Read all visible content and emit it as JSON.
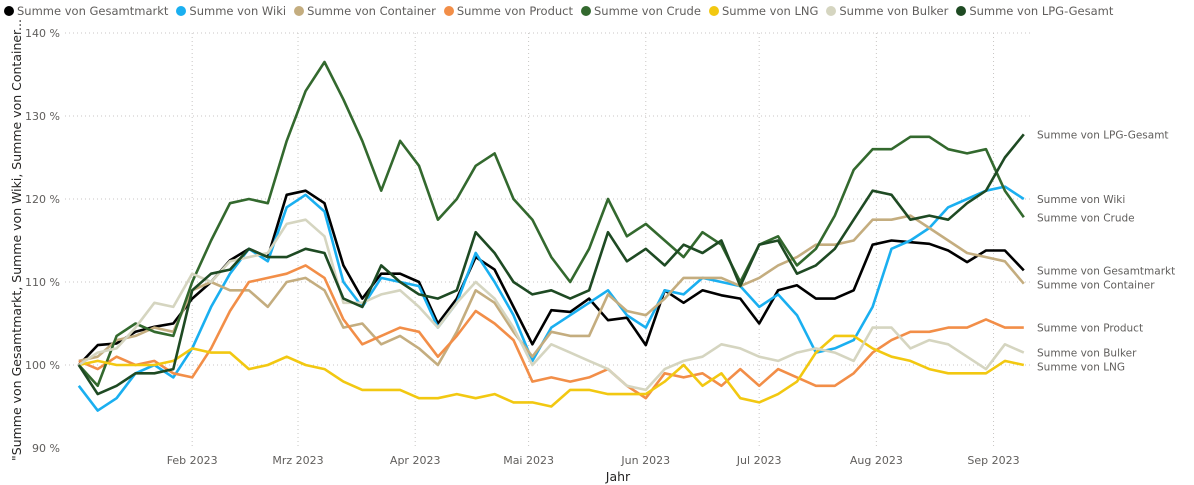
{
  "chart_data": {
    "type": "line",
    "title": "",
    "xlabel": "Jahr",
    "ylabel": "\"Summe von Gesamtmarkt, Summe von Wiki, Summe von Container...",
    "ylim": [
      90,
      140
    ],
    "y_ticks": [
      {
        "value": 90,
        "label": "90 %"
      },
      {
        "value": 100,
        "label": "100 %"
      },
      {
        "value": 110,
        "label": "110 %"
      },
      {
        "value": 120,
        "label": "120 %"
      },
      {
        "value": 130,
        "label": "130 %"
      },
      {
        "value": 140,
        "label": "140 %"
      }
    ],
    "x_ticks": [
      {
        "date": "2023-02-01",
        "label": "Feb 2023"
      },
      {
        "date": "2023-03-01",
        "label": "Mrz 2023"
      },
      {
        "date": "2023-04-01",
        "label": "Apr 2023"
      },
      {
        "date": "2023-05-01",
        "label": "Mai 2023"
      },
      {
        "date": "2023-06-01",
        "label": "Jun 2023"
      },
      {
        "date": "2023-07-01",
        "label": "Jul 2023"
      },
      {
        "date": "2023-08-01",
        "label": "Aug 2023"
      },
      {
        "date": "2023-09-01",
        "label": "Sep 2023"
      }
    ],
    "x_range": [
      "2023-01-01",
      "2023-09-10"
    ],
    "x_start": "2023-01-02",
    "x_step_days": 5,
    "grid": true,
    "legend_position": "top-left",
    "series": [
      {
        "name": "Summe von Gesamtmarkt",
        "color": "#000000",
        "values": [
          100,
          102.4,
          102.6,
          104,
          104.6,
          105,
          108,
          110,
          112.6,
          114,
          113,
          120.5,
          121,
          119.5,
          112,
          108,
          111,
          111,
          110,
          105,
          108,
          113,
          111.5,
          107,
          102.5,
          106.6,
          106.4,
          108,
          105.4,
          105.7,
          102.4,
          109,
          107.5,
          109,
          108.4,
          108,
          105,
          109,
          109.6,
          108,
          108,
          109,
          114.5,
          115,
          114.8,
          114.6,
          113.8,
          112.4,
          113.8,
          113.8,
          111.4
        ]
      },
      {
        "name": "Summe von Wiki",
        "color": "#1AAFF0",
        "values": [
          97.5,
          94.5,
          96,
          99,
          100,
          98.5,
          102,
          107,
          111,
          114,
          112.5,
          119,
          120.5,
          118.5,
          110,
          107,
          110.5,
          110,
          109.5,
          104.5,
          107.5,
          113.5,
          110,
          106,
          100.5,
          104.5,
          106,
          107.5,
          109,
          106,
          104.5,
          109,
          108.5,
          110.5,
          110,
          109.5,
          107,
          108.5,
          106,
          101.5,
          102,
          103,
          107,
          114,
          115,
          116.5,
          119,
          120,
          121,
          121.5,
          120
        ]
      },
      {
        "name": "Summe von Container",
        "color": "#C4AD7F",
        "values": [
          100.5,
          101,
          103,
          103.5,
          104.5,
          104,
          109,
          110,
          109,
          109,
          107,
          110,
          110.5,
          109,
          104.5,
          105,
          102.5,
          103.5,
          102,
          100,
          104,
          109,
          107.5,
          104,
          101,
          104,
          103.5,
          103.5,
          108.5,
          106.5,
          106,
          108,
          110.5,
          110.5,
          110.5,
          109.5,
          110.5,
          112,
          113,
          114.5,
          114.5,
          115,
          117.5,
          117.5,
          118,
          116.5,
          115,
          113.5,
          113,
          112.5,
          109.8
        ]
      },
      {
        "name": "Summe von Product",
        "color": "#F28E48",
        "values": [
          100.5,
          99.5,
          101,
          100,
          100.5,
          99,
          98.5,
          102,
          106.5,
          110,
          110.5,
          111,
          112,
          110.5,
          105.5,
          102.5,
          103.5,
          104.5,
          104,
          101,
          103.5,
          106.5,
          105,
          103,
          98,
          98.5,
          98,
          98.5,
          99.5,
          97.5,
          96,
          99,
          98.5,
          99,
          97.5,
          99.5,
          97.5,
          99.5,
          98.5,
          97.5,
          97.5,
          99,
          101.5,
          103,
          104,
          104,
          104.5,
          104.5,
          105.5,
          104.5,
          104.5
        ]
      },
      {
        "name": "Summe von Crude",
        "color": "#33692E",
        "values": [
          100,
          97.5,
          103.5,
          105,
          104,
          103.5,
          110,
          115,
          119.5,
          120,
          119.5,
          127,
          133,
          136.5,
          132,
          127,
          121,
          127,
          124,
          117.5,
          120,
          124,
          125.5,
          120,
          117.5,
          113,
          110,
          114,
          120,
          115.5,
          117,
          115,
          113,
          116,
          114.5,
          110,
          114.5,
          115.5,
          112,
          114,
          118,
          123.5,
          126,
          126,
          127.5,
          127.5,
          126,
          125.5,
          126,
          121,
          117.8
        ]
      },
      {
        "name": "Summe von LNG",
        "color": "#F2C811",
        "values": [
          100,
          100.5,
          100,
          100,
          100,
          100.5,
          102,
          101.5,
          101.5,
          99.5,
          100,
          101,
          100,
          99.5,
          98,
          97,
          97,
          97,
          96,
          96,
          96.5,
          96,
          96.5,
          95.5,
          95.5,
          95,
          97,
          97,
          96.5,
          96.5,
          96.5,
          98,
          100,
          97.5,
          99,
          96,
          95.5,
          96.5,
          98,
          101.5,
          103.5,
          103.5,
          102,
          101,
          100.5,
          99.5,
          99,
          99,
          99,
          100.5,
          100
        ]
      },
      {
        "name": "Summe von Bulker",
        "color": "#D5D5C0",
        "values": [
          100,
          101.5,
          102,
          104.5,
          107.5,
          107,
          111,
          110,
          112.5,
          113,
          113.5,
          117,
          117.5,
          115.5,
          107.5,
          107.5,
          108.5,
          109,
          107,
          104.5,
          107.5,
          110,
          108,
          104.5,
          100,
          102.5,
          101.5,
          100.5,
          99.5,
          97.5,
          97,
          99.5,
          100.5,
          101,
          102.5,
          102,
          101,
          100.5,
          101.5,
          102,
          101.5,
          100.5,
          104.5,
          104.5,
          102,
          103,
          102.5,
          101,
          99.5,
          102.5,
          101.5
        ]
      },
      {
        "name": "Summe von LPG-Gesamt",
        "color": "#1E4A23",
        "values": [
          100,
          96.5,
          97.5,
          99,
          99,
          99.5,
          109,
          111,
          111.5,
          114,
          113,
          113,
          114,
          113.5,
          108,
          107,
          112,
          110,
          108.5,
          108,
          109,
          116,
          113.5,
          110,
          108.5,
          109,
          108,
          109,
          116,
          112.5,
          114,
          112,
          114.5,
          113.5,
          115,
          109.5,
          114.5,
          115,
          111,
          112,
          114,
          117.5,
          121,
          120.5,
          117.5,
          118,
          117.5,
          119.5,
          121,
          125,
          127.8
        ]
      }
    ]
  }
}
